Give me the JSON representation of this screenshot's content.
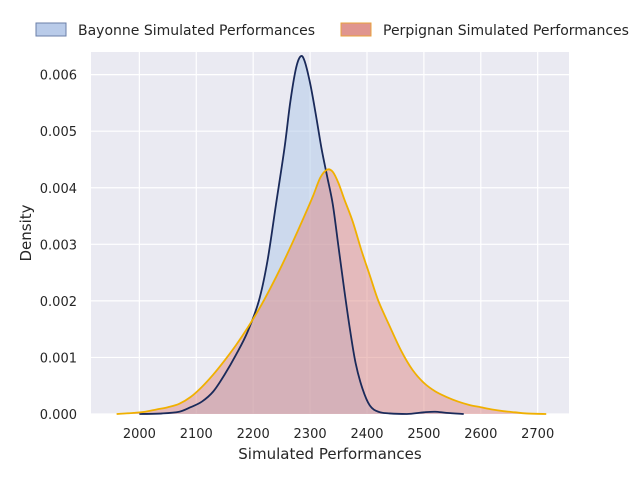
{
  "chart_data": {
    "type": "area",
    "title": "",
    "xlabel": "Simulated Performances",
    "ylabel": "Density",
    "xlim": [
      1915,
      2755
    ],
    "ylim": [
      0,
      0.0064
    ],
    "x_ticks": [
      2000,
      2100,
      2200,
      2300,
      2400,
      2500,
      2600,
      2700
    ],
    "y_ticks": [
      0.0,
      0.001,
      0.002,
      0.003,
      0.004,
      0.005,
      0.006
    ],
    "y_tick_labels": [
      "0.000",
      "0.001",
      "0.002",
      "0.003",
      "0.004",
      "0.005",
      "0.006"
    ],
    "grid": true,
    "legend_position": "top",
    "series": [
      {
        "name": "Bayonne Simulated Performances",
        "fill": "#aec7e8",
        "line": "#1a2a5a",
        "points": [
          [
            2000,
            0.0
          ],
          [
            2040,
            1e-05
          ],
          [
            2070,
            4e-05
          ],
          [
            2090,
            0.00012
          ],
          [
            2110,
            0.00022
          ],
          [
            2130,
            0.0004
          ],
          [
            2150,
            0.0007
          ],
          [
            2170,
            0.00105
          ],
          [
            2190,
            0.00145
          ],
          [
            2210,
            0.002
          ],
          [
            2225,
            0.0027
          ],
          [
            2240,
            0.0037
          ],
          [
            2255,
            0.0047
          ],
          [
            2265,
            0.0055
          ],
          [
            2275,
            0.0061
          ],
          [
            2283,
            0.00632
          ],
          [
            2290,
            0.00625
          ],
          [
            2300,
            0.00585
          ],
          [
            2310,
            0.0053
          ],
          [
            2320,
            0.0047
          ],
          [
            2330,
            0.0042
          ],
          [
            2340,
            0.0037
          ],
          [
            2350,
            0.00295
          ],
          [
            2360,
            0.0022
          ],
          [
            2370,
            0.0015
          ],
          [
            2380,
            0.0009
          ],
          [
            2392,
            0.00045
          ],
          [
            2405,
            0.00015
          ],
          [
            2420,
            4e-05
          ],
          [
            2440,
            1e-05
          ],
          [
            2470,
            0.0
          ],
          [
            2500,
            3e-05
          ],
          [
            2520,
            4e-05
          ],
          [
            2540,
            2e-05
          ],
          [
            2570,
            0.0
          ]
        ]
      },
      {
        "name": "Perpignan Simulated Performances",
        "fill": "#de8a85",
        "line": "#f0b000",
        "points": [
          [
            1960,
            0.0
          ],
          [
            1990,
            2e-05
          ],
          [
            2010,
            4e-05
          ],
          [
            2030,
            8e-05
          ],
          [
            2050,
            0.00012
          ],
          [
            2070,
            0.00018
          ],
          [
            2090,
            0.0003
          ],
          [
            2110,
            0.00048
          ],
          [
            2130,
            0.0007
          ],
          [
            2150,
            0.00095
          ],
          [
            2170,
            0.00122
          ],
          [
            2190,
            0.00152
          ],
          [
            2210,
            0.00185
          ],
          [
            2230,
            0.00222
          ],
          [
            2250,
            0.00262
          ],
          [
            2270,
            0.00305
          ],
          [
            2290,
            0.0035
          ],
          [
            2305,
            0.00385
          ],
          [
            2318,
            0.00418
          ],
          [
            2330,
            0.00432
          ],
          [
            2340,
            0.00428
          ],
          [
            2350,
            0.00408
          ],
          [
            2360,
            0.0038
          ],
          [
            2375,
            0.0034
          ],
          [
            2390,
            0.0029
          ],
          [
            2405,
            0.00245
          ],
          [
            2420,
            0.002
          ],
          [
            2440,
            0.00155
          ],
          [
            2460,
            0.00112
          ],
          [
            2480,
            0.00078
          ],
          [
            2500,
            0.00055
          ],
          [
            2520,
            0.0004
          ],
          [
            2540,
            0.0003
          ],
          [
            2560,
            0.00022
          ],
          [
            2580,
            0.00016
          ],
          [
            2600,
            0.00012
          ],
          [
            2620,
            8e-05
          ],
          [
            2640,
            5e-05
          ],
          [
            2660,
            3e-05
          ],
          [
            2680,
            1e-05
          ],
          [
            2715,
            0.0
          ]
        ]
      }
    ]
  }
}
